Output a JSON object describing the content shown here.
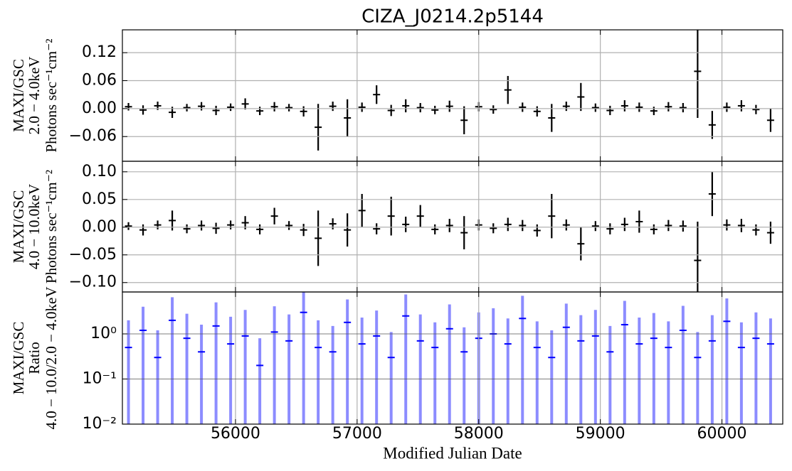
{
  "chart_data": [
    {
      "type": "errorbar",
      "title": "CIZA_J0214.2p5144",
      "ylabel": [
        "MAXI/GSC",
        "2.0 − 4.0keV",
        "Photons sec⁻¹cm⁻²"
      ],
      "x": [
        55120,
        55240,
        55360,
        55480,
        55600,
        55720,
        55840,
        55960,
        56080,
        56200,
        56320,
        56440,
        56560,
        56680,
        56800,
        56920,
        57040,
        57160,
        57280,
        57400,
        57520,
        57640,
        57760,
        57880,
        58000,
        58120,
        58240,
        58360,
        58480,
        58600,
        58720,
        58840,
        58960,
        59080,
        59200,
        59320,
        59440,
        59560,
        59680,
        59800,
        59920,
        60040,
        60160,
        60280,
        60400
      ],
      "series": [
        {
          "color": "#000000",
          "values": [
            0.004,
            -0.003,
            0.006,
            -0.008,
            0.002,
            0.005,
            -0.004,
            0.003,
            0.01,
            -0.005,
            0.004,
            0.002,
            -0.006,
            -0.04,
            0.005,
            -0.02,
            0.003,
            0.03,
            -0.004,
            0.006,
            0.002,
            -0.003,
            0.005,
            -0.025,
            0.004,
            -0.002,
            0.04,
            0.003,
            -0.006,
            -0.02,
            0.005,
            0.025,
            0.002,
            -0.004,
            0.006,
            0.003,
            -0.005,
            0.004,
            0.002,
            0.08,
            -0.035,
            0.003,
            0.006,
            -0.002,
            -0.025
          ],
          "errors": [
            0.008,
            0.01,
            0.009,
            0.012,
            0.008,
            0.009,
            0.01,
            0.008,
            0.012,
            0.009,
            0.01,
            0.008,
            0.011,
            0.05,
            0.01,
            0.04,
            0.01,
            0.02,
            0.012,
            0.014,
            0.01,
            0.009,
            0.012,
            0.03,
            0.01,
            0.009,
            0.03,
            0.01,
            0.011,
            0.03,
            0.01,
            0.03,
            0.009,
            0.01,
            0.012,
            0.01,
            0.009,
            0.01,
            0.01,
            0.1,
            0.03,
            0.01,
            0.012,
            0.01,
            0.025
          ]
        }
      ],
      "xlim": [
        55070,
        60500
      ],
      "xticks": [
        56000,
        57000,
        58000,
        59000,
        60000
      ],
      "ylim": [
        -0.113,
        0.169
      ],
      "yticks": [
        {
          "value": -0.06,
          "label": "−0.06"
        },
        {
          "value": 0,
          "label": "0.00"
        },
        0.06,
        0.12
      ],
      "grid": true
    },
    {
      "type": "errorbar",
      "ylabel": [
        "MAXI/GSC",
        "4.0 − 10.0keV",
        "Photons sec⁻¹cm⁻²"
      ],
      "x": [
        55120,
        55240,
        55360,
        55480,
        55600,
        55720,
        55840,
        55960,
        56080,
        56200,
        56320,
        56440,
        56560,
        56680,
        56800,
        56920,
        57040,
        57160,
        57280,
        57400,
        57520,
        57640,
        57760,
        57880,
        58000,
        58120,
        58240,
        58360,
        58480,
        58600,
        58720,
        58840,
        58960,
        59080,
        59200,
        59320,
        59440,
        59560,
        59680,
        59800,
        59920,
        60040,
        60160,
        60280,
        60400
      ],
      "series": [
        {
          "color": "#000000",
          "values": [
            0.002,
            -0.005,
            0.004,
            0.012,
            -0.003,
            0.003,
            -0.002,
            0.004,
            0.008,
            -0.004,
            0.02,
            0.003,
            -0.005,
            -0.02,
            0.006,
            -0.005,
            0.03,
            -0.003,
            0.02,
            0.005,
            0.02,
            -0.004,
            0.003,
            -0.01,
            0.004,
            -0.002,
            0.005,
            0.003,
            -0.006,
            0.02,
            0.004,
            -0.03,
            0.002,
            -0.003,
            0.005,
            0.01,
            -0.004,
            0.003,
            0.002,
            -0.06,
            0.06,
            0.004,
            0.003,
            -0.005,
            -0.01
          ],
          "errors": [
            0.007,
            0.01,
            0.008,
            0.018,
            0.008,
            0.009,
            0.01,
            0.008,
            0.012,
            0.009,
            0.015,
            0.008,
            0.011,
            0.05,
            0.01,
            0.03,
            0.03,
            0.01,
            0.035,
            0.014,
            0.02,
            0.009,
            0.012,
            0.03,
            0.01,
            0.009,
            0.012,
            0.01,
            0.011,
            0.04,
            0.01,
            0.03,
            0.009,
            0.01,
            0.012,
            0.02,
            0.009,
            0.01,
            0.01,
            0.07,
            0.04,
            0.01,
            0.012,
            0.01,
            0.02
          ]
        }
      ],
      "xlim": [
        55070,
        60500
      ],
      "xticks": [
        56000,
        57000,
        58000,
        59000,
        60000
      ],
      "ylim": [
        -0.117,
        0.119
      ],
      "yticks": [
        {
          "value": -0.1,
          "label": "−0.10"
        },
        {
          "value": -0.05,
          "label": "−0.05"
        },
        {
          "value": 0,
          "label": "0.00"
        },
        0.05,
        {
          "value": 0.1,
          "label": "0.10"
        }
      ],
      "grid": true
    },
    {
      "type": "errorbar",
      "ylabel": [
        "MAXI/GSC",
        "Ratio",
        "4.0 − 10.0/2.0 − 4.0keV"
      ],
      "xlabel": "Modified Julian Date",
      "x": [
        55120,
        55240,
        55360,
        55480,
        55600,
        55720,
        55840,
        55960,
        56080,
        56200,
        56320,
        56440,
        56560,
        56680,
        56800,
        56920,
        57040,
        57160,
        57280,
        57400,
        57520,
        57640,
        57760,
        57880,
        58000,
        58120,
        58240,
        58360,
        58480,
        58600,
        58720,
        58840,
        58960,
        59080,
        59200,
        59320,
        59440,
        59560,
        59680,
        59800,
        59920,
        60040,
        60160,
        60280,
        60400
      ],
      "series": [
        {
          "color": "#0000ff",
          "values": [
            0.5,
            1.2,
            0.3,
            2.0,
            0.8,
            0.4,
            1.5,
            0.6,
            0.9,
            0.2,
            1.1,
            0.7,
            3.0,
            0.5,
            0.4,
            1.8,
            0.6,
            0.9,
            0.3,
            2.5,
            0.7,
            0.5,
            1.3,
            0.4,
            0.8,
            1.0,
            0.6,
            2.2,
            0.5,
            0.3,
            1.4,
            0.7,
            0.9,
            0.4,
            1.6,
            0.6,
            0.8,
            0.5,
            1.2,
            0.3,
            0.7,
            1.9,
            0.5,
            0.8,
            0.6
          ],
          "errors": [
            1.5,
            2.8,
            0.9,
            4.5,
            2.0,
            1.2,
            3.5,
            1.8,
            2.5,
            0.6,
            3.0,
            2.0,
            6.0,
            1.5,
            1.1,
            4.0,
            1.7,
            2.4,
            0.8,
            5.0,
            2.0,
            1.3,
            3.2,
            1.0,
            2.2,
            2.7,
            1.6,
            4.8,
            1.4,
            0.9,
            3.3,
            1.9,
            2.5,
            1.1,
            3.8,
            1.7,
            2.1,
            1.4,
            3.0,
            0.8,
            1.9,
            4.2,
            1.3,
            2.2,
            1.6
          ]
        }
      ],
      "xlim": [
        55070,
        60500
      ],
      "xticks": [
        56000,
        57000,
        58000,
        59000,
        60000
      ],
      "log": true,
      "ylim": [
        0.01,
        8.5
      ],
      "yticks": [
        {
          "value": 0.01,
          "label": "10⁻²"
        },
        {
          "value": 0.1,
          "label": "10⁻¹"
        },
        {
          "value": 1,
          "label": "10⁰"
        }
      ],
      "grid": true
    }
  ]
}
